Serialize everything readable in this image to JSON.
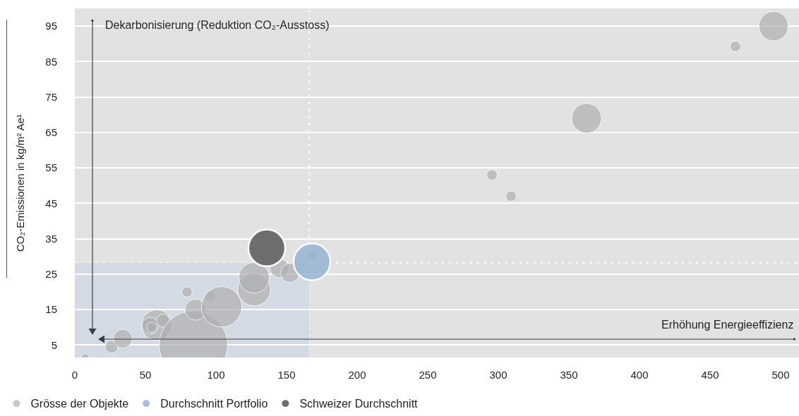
{
  "chart_data": {
    "type": "bubble",
    "ylabel": "CO₂-Emissionen in kg/m² Ae¹",
    "series": [
      {
        "name": "Grösse der Objekte",
        "color": "#b0b0b0",
        "x": [
          7.2,
          26,
          34,
          58,
          53.5,
          54.5,
          62.5,
          84,
          79.5,
          85.5,
          96,
          104,
          127,
          127,
          145,
          152.5,
          168,
          295.5,
          309,
          362.5,
          468,
          495
        ],
        "values": [
          1.5,
          4.5,
          6.8,
          10.6,
          10.5,
          10,
          11.9,
          5,
          20,
          15,
          18.7,
          15.8,
          20.7,
          24,
          26.7,
          25.4,
          30.3,
          53,
          47,
          69,
          89.3,
          95
        ],
        "sizes": [
          0.012,
          0.035,
          0.076,
          0.2,
          0.059,
          0.022,
          0.037,
          1,
          0.023,
          0.096,
          0.027,
          0.35,
          0.23,
          0.2,
          0.076,
          0.078,
          0.023,
          0.024,
          0.024,
          0.19,
          0.024,
          0.185
        ]
      },
      {
        "name": "Durchschnitt Portfolio",
        "color": "#98b4d3",
        "x": [
          168
        ],
        "values": [
          28.5
        ],
        "sizes": [
          0.29
        ]
      },
      {
        "name": "Schweizer Durchschnitt",
        "color": "#6e6e6c",
        "x": [
          136
        ],
        "values": [
          32.4
        ],
        "sizes": [
          0.29
        ]
      }
    ],
    "xlim": [
      0,
      513
    ],
    "xticks": [
      0,
      50,
      100,
      150,
      200,
      250,
      300,
      350,
      400,
      450,
      500
    ],
    "ylim": [
      1.5,
      100
    ],
    "yticks": [
      5,
      15,
      25,
      35,
      45,
      55,
      65,
      75,
      85,
      95
    ],
    "grid": "y",
    "legend": "bottom",
    "marker": "circle",
    "ref_lines": [
      {
        "axis": "x",
        "value": 166,
        "color": "#ffffff",
        "line_style": "dotted"
      },
      {
        "axis": "y",
        "value": 28.2,
        "color": "#ffffff",
        "line_style": "dotted"
      }
    ],
    "bands": [
      {
        "axis": "x",
        "from": 0,
        "to": 166,
        "color": "#d3dae4"
      }
    ],
    "annotations": [
      "Dekarbonisierung (Reduktion CO₂-Ausstoss)",
      "Erhöhung Energieeffizienz"
    ]
  }
}
